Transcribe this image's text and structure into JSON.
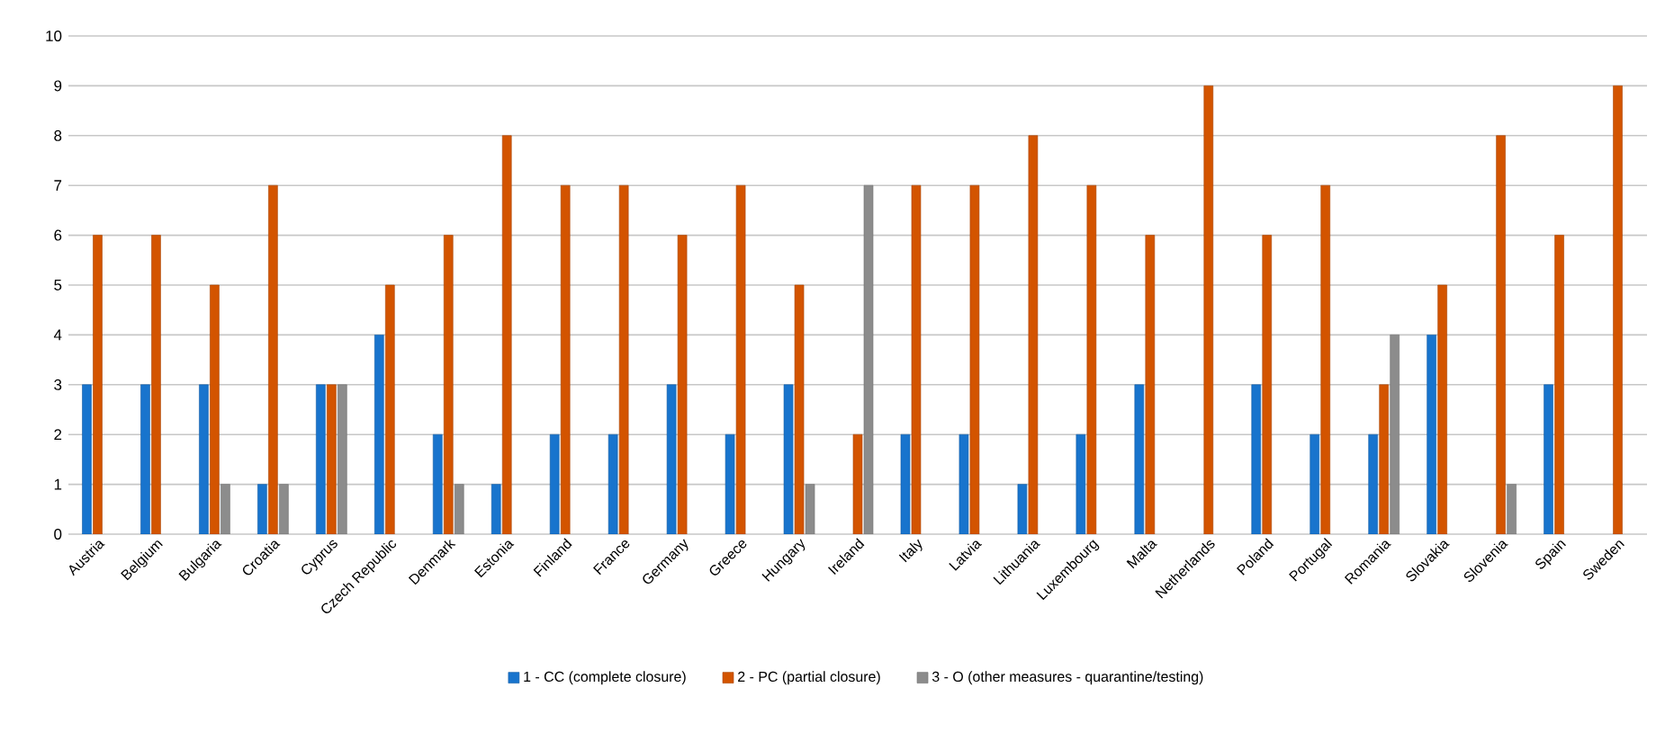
{
  "chart_data": {
    "type": "bar",
    "categories": [
      "Austria",
      "Belgium",
      "Bulgaria",
      "Croatia",
      "Cyprus",
      "Czech Republic",
      "Denmark",
      "Estonia",
      "Finland",
      "France",
      "Germany",
      "Greece",
      "Hungary",
      "Ireland",
      "Italy",
      "Latvia",
      "Lithuania",
      "Luxembourg",
      "Malta",
      "Netherlands",
      "Poland",
      "Portugal",
      "Romania",
      "Slovakia",
      "Slovenia",
      "Spain",
      "Sweden"
    ],
    "series": [
      {
        "name": "1 - CC (complete closure)",
        "color": "#1874cd",
        "values": [
          3,
          3,
          3,
          1,
          3,
          4,
          2,
          1,
          2,
          2,
          3,
          2,
          3,
          null,
          2,
          2,
          1,
          2,
          3,
          null,
          3,
          2,
          2,
          4,
          null,
          3,
          null
        ]
      },
      {
        "name": "2 - PC (partial closure)",
        "color": "#d35400",
        "values": [
          6,
          6,
          5,
          7,
          3,
          5,
          6,
          8,
          7,
          7,
          6,
          7,
          5,
          2,
          7,
          7,
          8,
          7,
          6,
          9,
          6,
          7,
          3,
          5,
          8,
          6,
          9
        ]
      },
      {
        "name": "3 - O (other measures - quarantine/testing)",
        "color": "#8c8c8c",
        "values": [
          null,
          null,
          1,
          1,
          3,
          null,
          1,
          null,
          null,
          null,
          null,
          null,
          1,
          7,
          null,
          null,
          null,
          null,
          null,
          null,
          null,
          null,
          4,
          null,
          1,
          null,
          null
        ]
      }
    ],
    "ylim": [
      0,
      10
    ],
    "yticks": [
      0,
      1,
      2,
      3,
      4,
      5,
      6,
      7,
      8,
      9,
      10
    ],
    "grid": "y",
    "legend": "bottom"
  }
}
